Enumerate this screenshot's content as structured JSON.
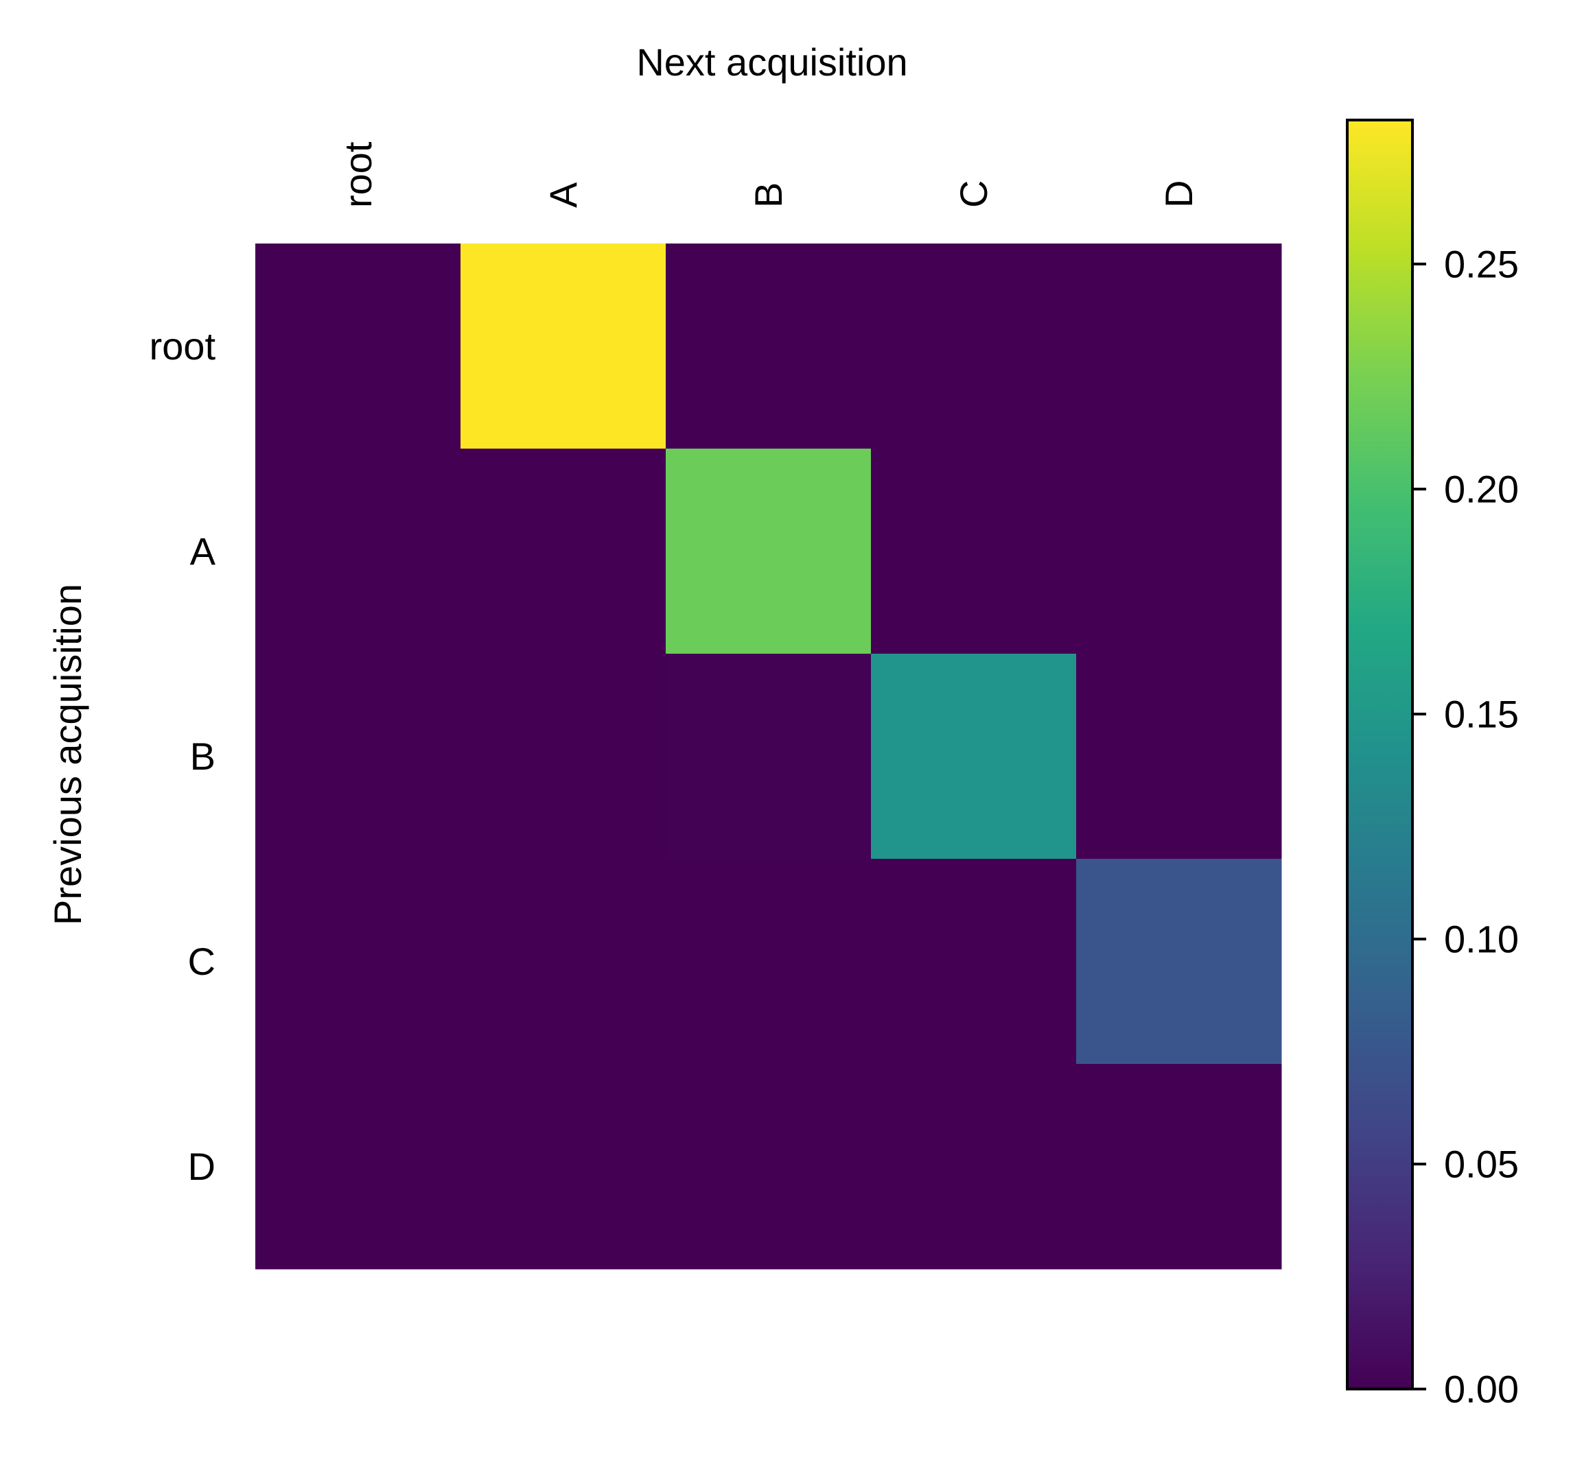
{
  "chart_data": {
    "type": "heatmap",
    "xlabel": "Next acquisition",
    "ylabel": "Previous acquisition",
    "x_categories": [
      "root",
      "A",
      "B",
      "C",
      "D"
    ],
    "y_categories": [
      "root",
      "A",
      "B",
      "C",
      "D"
    ],
    "values": [
      [
        0.0,
        0.282,
        0.0,
        0.0,
        0.0
      ],
      [
        0.0,
        0.0,
        0.218,
        0.0,
        0.0
      ],
      [
        0.0,
        0.0,
        0.001,
        0.146,
        0.0
      ],
      [
        0.0,
        0.0,
        0.0,
        0.0,
        0.074
      ],
      [
        0.0,
        0.0,
        0.0,
        0.0,
        0.0
      ]
    ],
    "colormap": "viridis",
    "colorbar": {
      "vmin": 0.0,
      "vmax": 0.282,
      "ticks": [
        0.0,
        0.05,
        0.1,
        0.15,
        0.2,
        0.25
      ],
      "tick_labels": [
        "0.00",
        "0.05",
        "0.10",
        "0.15",
        "0.20",
        "0.25"
      ]
    },
    "grid": false,
    "x_ticks_position": "top",
    "legend": "colorbar-right"
  }
}
